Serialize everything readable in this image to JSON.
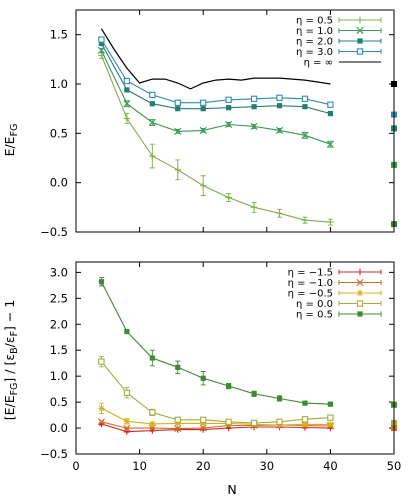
{
  "chart_data": [
    {
      "type": "line",
      "ylabel_main": "E/E",
      "ylabel_sub": "FG",
      "xlim": [
        0,
        50
      ],
      "ylim": [
        -0.5,
        1.75
      ],
      "yticks": [
        -0.5,
        0.0,
        0.5,
        1.0,
        1.5
      ],
      "ytick_labels": [
        "−0.5",
        "0.0",
        "0.5",
        "1.0",
        "1.5"
      ],
      "show_xtick_labels": false,
      "legend_position": "top-right",
      "series": [
        {
          "name": "η = 0.5",
          "color": "#7fb04a",
          "marker": "plus",
          "errorbars": true,
          "x": [
            4,
            8,
            12,
            16,
            20,
            24,
            28,
            32,
            36,
            40
          ],
          "y": [
            1.29,
            0.65,
            0.27,
            0.13,
            -0.03,
            -0.15,
            -0.25,
            -0.31,
            -0.38,
            -0.4
          ],
          "err": [
            0.03,
            0.05,
            0.12,
            0.1,
            0.1,
            0.04,
            0.05,
            0.04,
            0.03,
            0.03
          ]
        },
        {
          "name": "η = 1.0",
          "color": "#3a9a52",
          "marker": "x",
          "errorbars": true,
          "x": [
            4,
            8,
            12,
            16,
            20,
            24,
            28,
            32,
            36,
            40
          ],
          "y": [
            1.34,
            0.8,
            0.61,
            0.52,
            0.53,
            0.59,
            0.57,
            0.53,
            0.48,
            0.39
          ],
          "err": [
            0.02,
            0.03,
            0.03,
            0.02,
            0.02,
            0.02,
            0.02,
            0.02,
            0.03,
            0.03
          ]
        },
        {
          "name": "η = 2.0",
          "color": "#287d73",
          "marker": "filled-square",
          "errorbars": true,
          "x": [
            4,
            8,
            12,
            16,
            20,
            24,
            28,
            32,
            36,
            40
          ],
          "y": [
            1.41,
            0.94,
            0.8,
            0.75,
            0.75,
            0.76,
            0.77,
            0.78,
            0.77,
            0.7
          ],
          "err": [
            0.01,
            0.01,
            0.01,
            0.01,
            0.01,
            0.01,
            0.01,
            0.01,
            0.01,
            0.01
          ]
        },
        {
          "name": "η = 3.0",
          "color": "#2f8ab8",
          "marker": "open-square",
          "errorbars": true,
          "x": [
            4,
            8,
            12,
            16,
            20,
            24,
            28,
            32,
            36,
            40
          ],
          "y": [
            1.45,
            1.03,
            0.89,
            0.81,
            0.81,
            0.84,
            0.85,
            0.86,
            0.85,
            0.79
          ],
          "err": [
            0.01,
            0.01,
            0.01,
            0.01,
            0.01,
            0.01,
            0.01,
            0.01,
            0.01,
            0.01
          ]
        },
        {
          "name": "η = ∞",
          "color": "#000000",
          "marker": "none",
          "errorbars": false,
          "x": [
            4,
            6,
            8,
            10,
            12,
            14,
            16,
            18,
            20,
            22,
            24,
            26,
            28,
            30,
            32,
            34,
            36,
            38,
            40
          ],
          "y": [
            1.56,
            1.35,
            1.16,
            1.01,
            1.05,
            1.05,
            1.01,
            0.95,
            1.01,
            1.04,
            1.05,
            1.04,
            1.06,
            1.06,
            1.06,
            1.05,
            1.04,
            1.02,
            1.0
          ]
        }
      ],
      "side_markers": {
        "x": 50,
        "y": [
          1.0,
          0.69,
          0.55,
          0.18,
          -0.42
        ],
        "colors": [
          "#000000",
          "#2f8ab8",
          "#287d73",
          "#3a9a52",
          "#3f7a32"
        ]
      }
    },
    {
      "type": "line",
      "ylabel": "[E/E",
      "ylabel_parts": [
        "[E/E",
        "FG",
        "] / [ε",
        "B",
        "/ε",
        "F",
        "] − 1"
      ],
      "xlabel": "N",
      "xlim": [
        0,
        50
      ],
      "ylim": [
        -0.5,
        3.2
      ],
      "xticks": [
        0,
        10,
        20,
        30,
        40,
        50
      ],
      "xtick_labels": [
        "0",
        "10",
        "20",
        "30",
        "40",
        "50"
      ],
      "yticks": [
        -0.5,
        0.0,
        0.5,
        1.0,
        1.5,
        2.0,
        2.5,
        3.0
      ],
      "ytick_labels": [
        "−0.5",
        "0.0",
        "0.5",
        "1.0",
        "1.5",
        "2.0",
        "2.5",
        "3.0"
      ],
      "legend_position": "top-right",
      "series": [
        {
          "name": "η = −1.5",
          "color": "#c62a2a",
          "marker": "plus",
          "errorbars": true,
          "x": [
            4,
            8,
            12,
            16,
            20,
            24,
            28,
            32,
            36,
            40
          ],
          "y": [
            0.08,
            -0.07,
            -0.05,
            -0.03,
            -0.03,
            0.0,
            0.02,
            0.02,
            0.01,
            0.0
          ],
          "err": [
            0.02,
            0.01,
            0.01,
            0.01,
            0.01,
            0.01,
            0.01,
            0.01,
            0.01,
            0.01
          ]
        },
        {
          "name": "η = −1.0",
          "color": "#d06b2a",
          "marker": "x",
          "errorbars": true,
          "x": [
            4,
            8,
            12,
            16,
            20,
            24,
            28,
            32,
            36,
            40
          ],
          "y": [
            0.12,
            0.0,
            0.0,
            -0.01,
            0.0,
            0.05,
            0.05,
            0.06,
            0.05,
            0.04
          ],
          "err": [
            0.02,
            0.01,
            0.01,
            0.01,
            0.01,
            0.01,
            0.01,
            0.01,
            0.01,
            0.01
          ]
        },
        {
          "name": "η = −0.5",
          "color": "#d5b21a",
          "marker": "asterisk",
          "errorbars": true,
          "x": [
            4,
            8,
            12,
            16,
            20,
            24,
            28,
            32,
            36,
            40
          ],
          "y": [
            0.38,
            0.13,
            0.08,
            0.09,
            0.09,
            0.09,
            0.07,
            0.06,
            0.07,
            0.07
          ],
          "err": [
            0.1,
            0.05,
            0.03,
            0.02,
            0.02,
            0.02,
            0.02,
            0.02,
            0.02,
            0.02
          ]
        },
        {
          "name": "η = 0.0",
          "color": "#a2ad3c",
          "marker": "open-square",
          "errorbars": true,
          "x": [
            4,
            8,
            12,
            16,
            20,
            24,
            28,
            32,
            36,
            40
          ],
          "y": [
            1.28,
            0.68,
            0.3,
            0.16,
            0.16,
            0.12,
            0.1,
            0.12,
            0.17,
            0.2
          ],
          "err": [
            0.1,
            0.1,
            0.06,
            0.04,
            0.04,
            0.03,
            0.03,
            0.03,
            0.03,
            0.03
          ]
        },
        {
          "name": "η = 0.5",
          "color": "#3f8a32",
          "marker": "filled-square",
          "errorbars": true,
          "x": [
            4,
            8,
            12,
            16,
            20,
            24,
            28,
            32,
            36,
            40
          ],
          "y": [
            2.82,
            1.86,
            1.35,
            1.17,
            0.96,
            0.81,
            0.66,
            0.57,
            0.48,
            0.46
          ],
          "err": [
            0.08,
            0.04,
            0.15,
            0.12,
            0.13,
            0.05,
            0.05,
            0.05,
            0.03,
            0.03
          ]
        }
      ],
      "side_markers": {
        "x": 50,
        "y": [
          0.45,
          0.1,
          0.0
        ],
        "colors": [
          "#3f8a32",
          "#a2ad3c",
          "#d06b2a"
        ]
      }
    }
  ]
}
